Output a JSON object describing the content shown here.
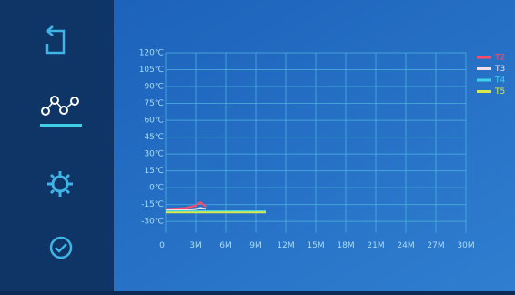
{
  "chart_data": {
    "type": "line",
    "x": [
      0,
      1,
      2,
      3,
      3.5,
      4,
      5,
      6,
      7,
      8,
      9,
      10
    ],
    "xlim": [
      0,
      30
    ],
    "xticks": [
      {
        "value": 0,
        "label": "0"
      },
      {
        "value": 3,
        "label": "3M"
      },
      {
        "value": 6,
        "label": "6M"
      },
      {
        "value": 9,
        "label": "9M"
      },
      {
        "value": 12,
        "label": "12M"
      },
      {
        "value": 15,
        "label": "15M"
      },
      {
        "value": 18,
        "label": "18M"
      },
      {
        "value": 21,
        "label": "21M"
      },
      {
        "value": 24,
        "label": "24M"
      },
      {
        "value": 27,
        "label": "27M"
      },
      {
        "value": 30,
        "label": "30M"
      }
    ],
    "ylim": [
      -40,
      120
    ],
    "yticks": [
      {
        "value": 120,
        "label": "120℃"
      },
      {
        "value": 105,
        "label": "105℃"
      },
      {
        "value": 90,
        "label": "90℃"
      },
      {
        "value": 75,
        "label": "75℃"
      },
      {
        "value": 60,
        "label": "60℃"
      },
      {
        "value": 45,
        "label": "45℃"
      },
      {
        "value": 30,
        "label": "30℃"
      },
      {
        "value": 15,
        "label": "15℃"
      },
      {
        "value": 0,
        "label": "0℃"
      },
      {
        "value": -15,
        "label": "-15℃"
      },
      {
        "value": -30,
        "label": "-30℃"
      }
    ],
    "grid": true,
    "legend": "top-right",
    "series": [
      {
        "name": "T2",
        "color": "#ff4a6a",
        "values": [
          -19,
          -18.5,
          -18,
          -16,
          -13,
          -17,
          null,
          null,
          null,
          null,
          null,
          null
        ]
      },
      {
        "name": "T3",
        "color": "#f2e0e8",
        "values": [
          -20,
          -20,
          -19.5,
          -19,
          -18,
          -19,
          null,
          null,
          null,
          null,
          null,
          null
        ]
      },
      {
        "name": "T4",
        "color": "#3fd0e8",
        "values": [
          -21,
          -21,
          -21,
          -21,
          -21,
          -21,
          -21,
          -21,
          -21,
          -21,
          -21,
          -21
        ]
      },
      {
        "name": "T5",
        "color": "#d8e84a",
        "values": [
          -22,
          -22,
          -22,
          -22,
          -22,
          -22,
          -22,
          -22,
          -22,
          -22,
          -22,
          -22
        ]
      }
    ]
  }
}
